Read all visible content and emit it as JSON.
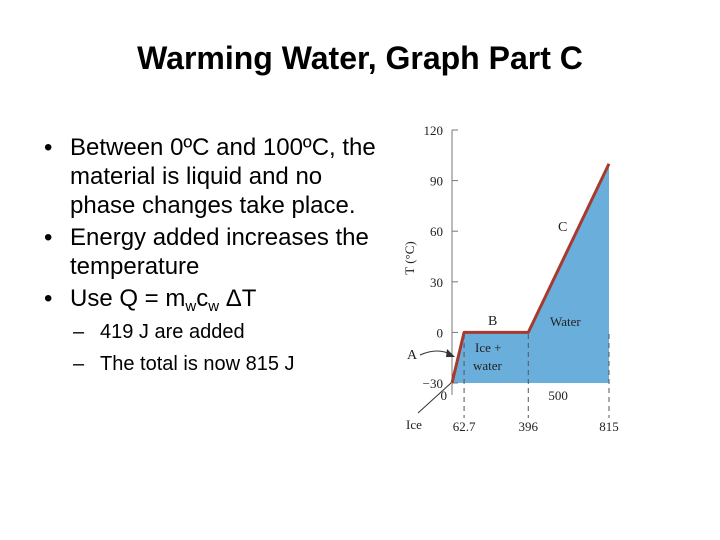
{
  "slide": {
    "title": "Warming Water, Graph Part C",
    "bullets": [
      "Between 0ºC and 100ºC, the material is liquid and no phase changes take place.",
      "Energy added increases the temperature"
    ],
    "bullet3": {
      "prefix": "Use Q = m",
      "sub1": "w",
      "mid": "c",
      "sub2": "w",
      "suffix": " ΔT"
    },
    "sub_bullets": [
      "419 J are added",
      "The total is now 815 J"
    ]
  },
  "chart_data": {
    "type": "line",
    "ylabel": "T (°C)",
    "y_ticks": [
      "120",
      "90",
      "60",
      "30",
      "0",
      "−30"
    ],
    "x_ticks_top": [
      "0",
      "500"
    ],
    "x_ticks_bottom": [
      "62.7",
      "396",
      "815"
    ],
    "x_start_label": "Ice",
    "series": [
      {
        "x": [
          0,
          62.7,
          396,
          815
        ],
        "y": [
          -30,
          0,
          0,
          100
        ]
      }
    ],
    "ylim": [
      -30,
      120
    ],
    "region_labels": {
      "A": "A",
      "B": "B",
      "C": "C",
      "ice_water": "Ice +",
      "ice_water2": "water",
      "water": "Water"
    },
    "colors": {
      "line": "#a63a2e",
      "fill": "#6aaedc"
    }
  }
}
